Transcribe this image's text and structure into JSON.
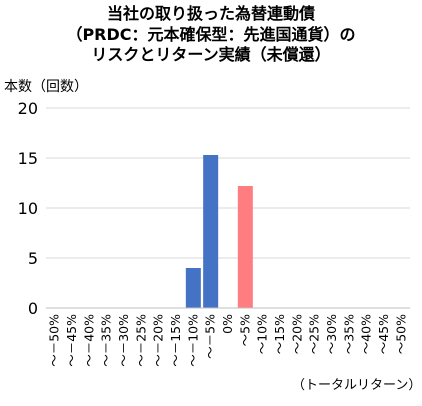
{
  "chart_data": {
    "type": "bar",
    "title_lines": [
      "当社の取り扱った為替連動債",
      "（PRDC：元本確保型：先進国通貨）の",
      "リスクとリターン実績（未償還）"
    ],
    "ylabel": "本数（回数）",
    "xlabel": "（トータルリターン）",
    "ylim": [
      0,
      20
    ],
    "yticks": [
      0,
      5,
      10,
      15,
      20
    ],
    "grid": "horizontal",
    "categories": [
      "～－50%",
      "～－45%",
      "～－40%",
      "～－35%",
      "～－30%",
      "～－25%",
      "～－20%",
      "～－15%",
      "～－10%",
      "～－5%",
      "0%",
      "～5%",
      "～10%",
      "～15%",
      "～20%",
      "～25%",
      "～30%",
      "～35%",
      "～40%",
      "～45%",
      "～50%"
    ],
    "values": [
      0,
      0,
      0,
      0,
      0,
      0,
      0,
      0,
      4,
      15.3,
      0,
      12.2,
      0,
      0,
      0,
      0,
      0,
      0,
      0,
      0,
      0
    ],
    "colors": {
      "negative": "#4472c4",
      "positive": "#ff7c80",
      "grid": "#d9d9d9",
      "axis": "#bfbfbf"
    }
  }
}
